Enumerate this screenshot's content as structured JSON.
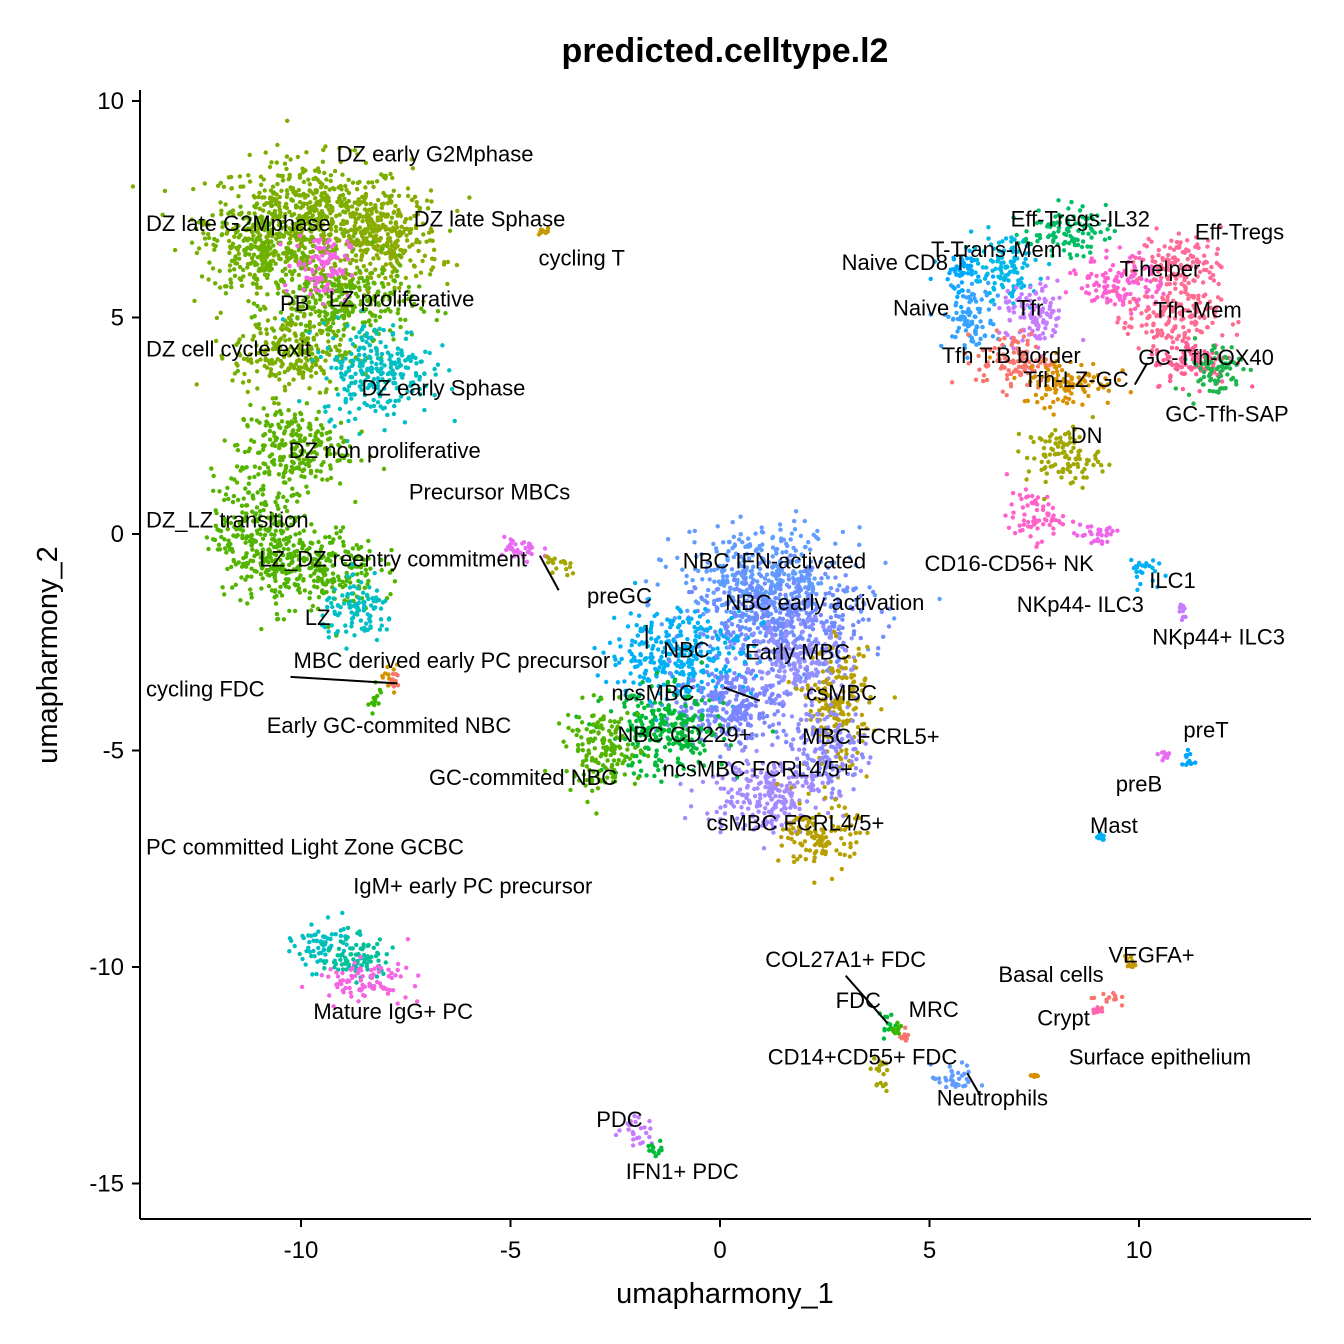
{
  "chart_data": {
    "type": "scatter",
    "title": "predicted.celltype.l2",
    "xlabel": "umapharmony_1",
    "ylabel": "umapharmony_2",
    "xlim": [
      -14,
      14
    ],
    "ylim": [
      -16,
      10.2
    ],
    "xticks": [
      -10,
      -5,
      0,
      5,
      10
    ],
    "yticks": [
      10,
      5,
      0,
      -5,
      -10,
      -15
    ],
    "grid": false,
    "legend": "none",
    "clusters": [
      {
        "name": "DZ early G2Mphase",
        "x": -9.8,
        "y": 7.2,
        "sx": 2.2,
        "sy": 1.3,
        "color": "#7CAE00"
      },
      {
        "name": "DZ late G2Mphase",
        "x": -11.0,
        "y": 6.6,
        "sx": 1.0,
        "sy": 1.0,
        "color": "#6BB100"
      },
      {
        "name": "DZ late Sphase",
        "x": -8.0,
        "y": 6.8,
        "sx": 1.2,
        "sy": 1.0,
        "color": "#8AAB00"
      },
      {
        "name": "LZ proliferative",
        "x": -9.0,
        "y": 5.3,
        "sx": 1.5,
        "sy": 0.9,
        "color": "#5DB300"
      },
      {
        "name": "PB",
        "x": -9.5,
        "y": 6.2,
        "sx": 0.6,
        "sy": 0.7,
        "color": "#F564E3"
      },
      {
        "name": "DZ cell cycle exit",
        "x": -10.3,
        "y": 4.2,
        "sx": 1.2,
        "sy": 0.9,
        "color": "#7CAE00"
      },
      {
        "name": "DZ early Sphase",
        "x": -8.2,
        "y": 3.8,
        "sx": 1.2,
        "sy": 1.0,
        "color": "#00BFC4"
      },
      {
        "name": "DZ non proliferative",
        "x": -10.2,
        "y": 2.0,
        "sx": 1.2,
        "sy": 0.9,
        "color": "#5BB300"
      },
      {
        "name": "DZ_LZ transition",
        "x": -11.0,
        "y": 0.0,
        "sx": 1.0,
        "sy": 1.3,
        "color": "#53B400"
      },
      {
        "name": "LZ_DZ reentry commitment",
        "x": -9.6,
        "y": -0.8,
        "sx": 1.3,
        "sy": 0.9,
        "color": "#4EB400"
      },
      {
        "name": "LZ",
        "x": -8.6,
        "y": -1.8,
        "sx": 0.8,
        "sy": 0.6,
        "color": "#00BFC4"
      },
      {
        "name": "Precursor MBCs",
        "x": -4.8,
        "y": -0.4,
        "sx": 0.5,
        "sy": 0.3,
        "color": "#E76BF3"
      },
      {
        "name": "preGC",
        "x": -3.8,
        "y": -0.7,
        "sx": 0.35,
        "sy": 0.25,
        "color": "#A3A500"
      },
      {
        "name": "cycling T",
        "x": -4.2,
        "y": 7.0,
        "sx": 0.15,
        "sy": 0.1,
        "color": "#C49A00"
      },
      {
        "name": "NBC IFN-activated",
        "x": 1.0,
        "y": -1.0,
        "sx": 1.8,
        "sy": 1.0,
        "color": "#619CFF"
      },
      {
        "name": "NBC early activation",
        "x": 1.5,
        "y": -2.0,
        "sx": 1.8,
        "sy": 1.0,
        "color": "#6F8BFF"
      },
      {
        "name": "NBC",
        "x": -1.0,
        "y": -2.8,
        "sx": 1.5,
        "sy": 1.0,
        "color": "#00B0F6"
      },
      {
        "name": "Early MBC",
        "x": 1.8,
        "y": -3.0,
        "sx": 1.2,
        "sy": 0.9,
        "color": "#9590FF"
      },
      {
        "name": "ncsMBC",
        "x": 0.3,
        "y": -4.0,
        "sx": 1.3,
        "sy": 0.9,
        "color": "#7A86FF"
      },
      {
        "name": "csMBC",
        "x": 2.8,
        "y": -4.0,
        "sx": 0.7,
        "sy": 1.2,
        "color": "#B79F00"
      },
      {
        "name": "NBC CD229+",
        "x": -1.3,
        "y": -4.6,
        "sx": 1.3,
        "sy": 0.9,
        "color": "#00BA38"
      },
      {
        "name": "MBC FCRL5+",
        "x": 2.6,
        "y": -5.0,
        "sx": 0.8,
        "sy": 0.9,
        "color": "#8D8BFF"
      },
      {
        "name": "GC-commited NBC",
        "x": -2.8,
        "y": -5.0,
        "sx": 0.8,
        "sy": 0.9,
        "color": "#53B400"
      },
      {
        "name": "ncsMBC FCRL4/5+",
        "x": 1.0,
        "y": -6.0,
        "sx": 1.3,
        "sy": 0.8,
        "color": "#A58AFF"
      },
      {
        "name": "csMBC FCRL4/5+",
        "x": 2.4,
        "y": -7.0,
        "sx": 0.8,
        "sy": 0.7,
        "color": "#B79F00"
      },
      {
        "name": "MBC derived early PC precursor",
        "x": -7.9,
        "y": -3.2,
        "sx": 0.15,
        "sy": 0.3,
        "color": "#D39200"
      },
      {
        "name": "cycling FDC",
        "x": -7.8,
        "y": -3.4,
        "sx": 0.1,
        "sy": 0.15,
        "color": "#F8766D"
      },
      {
        "name": "Early GC-commited NBC",
        "x": -8.2,
        "y": -3.8,
        "sx": 0.2,
        "sy": 0.3,
        "color": "#39B600"
      },
      {
        "name": "PC committed Light Zone GCBC",
        "x": -9.5,
        "y": -9.5,
        "sx": 0.6,
        "sy": 0.5,
        "color": "#00BFC4"
      },
      {
        "name": "IgM+ early PC precursor",
        "x": -8.7,
        "y": -9.8,
        "sx": 0.8,
        "sy": 0.5,
        "color": "#00C19A"
      },
      {
        "name": "Mature IgG+ PC",
        "x": -8.5,
        "y": -10.3,
        "sx": 1.0,
        "sy": 0.4,
        "color": "#F564E3"
      },
      {
        "name": "Naive CD8 T",
        "x": 5.8,
        "y": 6.0,
        "sx": 0.5,
        "sy": 0.5,
        "color": "#00A9FF"
      },
      {
        "name": "T-Trans-Mem",
        "x": 6.8,
        "y": 6.1,
        "sx": 0.7,
        "sy": 0.7,
        "color": "#00B8E7"
      },
      {
        "name": "Eff-Tregs-IL32",
        "x": 8.2,
        "y": 7.0,
        "sx": 0.9,
        "sy": 0.5,
        "color": "#00BE67"
      },
      {
        "name": "Eff-Tregs",
        "x": 11.0,
        "y": 6.3,
        "sx": 0.9,
        "sy": 0.6,
        "color": "#FF6A98"
      },
      {
        "name": "T-helper",
        "x": 9.6,
        "y": 5.8,
        "sx": 0.9,
        "sy": 0.6,
        "color": "#FD61D1"
      },
      {
        "name": "Naive",
        "x": 6.0,
        "y": 5.0,
        "sx": 0.6,
        "sy": 0.7,
        "color": "#35A2FF"
      },
      {
        "name": "Tfr",
        "x": 7.5,
        "y": 5.0,
        "sx": 0.7,
        "sy": 0.7,
        "color": "#C77CFF"
      },
      {
        "name": "Tfh-Mem",
        "x": 10.8,
        "y": 5.0,
        "sx": 1.0,
        "sy": 0.7,
        "color": "#FF6C91"
      },
      {
        "name": "Tfh T:B border",
        "x": 7.0,
        "y": 4.0,
        "sx": 0.8,
        "sy": 0.6,
        "color": "#F8766D"
      },
      {
        "name": "GC-Tfh-OX40",
        "x": 11.3,
        "y": 4.0,
        "sx": 0.9,
        "sy": 0.5,
        "color": "#FF5E95"
      },
      {
        "name": "Tfh-LZ-GC",
        "x": 8.3,
        "y": 3.5,
        "sx": 1.0,
        "sy": 0.5,
        "color": "#D89000"
      },
      {
        "name": "GC-Tfh-SAP",
        "x": 11.8,
        "y": 3.8,
        "sx": 0.6,
        "sy": 0.6,
        "color": "#1FB44C"
      },
      {
        "name": "DN",
        "x": 8.2,
        "y": 1.8,
        "sx": 0.8,
        "sy": 0.6,
        "color": "#9FA700"
      },
      {
        "name": "CD16-CD56+ NK",
        "x": 7.5,
        "y": 0.4,
        "sx": 0.6,
        "sy": 0.5,
        "color": "#FF61C9"
      },
      {
        "name": "NKp44- ILC3",
        "x": 9.0,
        "y": 0.0,
        "sx": 0.5,
        "sy": 0.3,
        "color": "#F066EA"
      },
      {
        "name": "ILC1",
        "x": 10.0,
        "y": -0.8,
        "sx": 0.35,
        "sy": 0.3,
        "color": "#00B0F6"
      },
      {
        "name": "NKp44+ ILC3",
        "x": 11.0,
        "y": -1.8,
        "sx": 0.15,
        "sy": 0.25,
        "color": "#C77CFF"
      },
      {
        "name": "preT",
        "x": 11.2,
        "y": -5.2,
        "sx": 0.15,
        "sy": 0.25,
        "color": "#00A5FF"
      },
      {
        "name": "preB",
        "x": 10.6,
        "y": -5.1,
        "sx": 0.2,
        "sy": 0.1,
        "color": "#E76BF3"
      },
      {
        "name": "Mast",
        "x": 9.1,
        "y": -7.0,
        "sx": 0.08,
        "sy": 0.08,
        "color": "#00B0F6"
      },
      {
        "name": "COL27A1+ FDC",
        "x": 4.0,
        "y": -11.3,
        "sx": 0.2,
        "sy": 0.3,
        "color": "#00BA38"
      },
      {
        "name": "FDC",
        "x": 4.2,
        "y": -11.5,
        "sx": 0.15,
        "sy": 0.2,
        "color": "#39B600"
      },
      {
        "name": "MRC",
        "x": 4.4,
        "y": -11.6,
        "sx": 0.1,
        "sy": 0.1,
        "color": "#F8766D"
      },
      {
        "name": "CD14+CD55+ FDC",
        "x": 3.8,
        "y": -12.5,
        "sx": 0.2,
        "sy": 0.4,
        "color": "#A3A500"
      },
      {
        "name": "Neutrophils",
        "x": 5.6,
        "y": -12.6,
        "sx": 0.5,
        "sy": 0.3,
        "color": "#619CFF"
      },
      {
        "name": "Basal cells",
        "x": 9.2,
        "y": -10.7,
        "sx": 0.3,
        "sy": 0.2,
        "color": "#F8766D"
      },
      {
        "name": "VEGFA+",
        "x": 9.8,
        "y": -9.9,
        "sx": 0.12,
        "sy": 0.15,
        "color": "#C49A00"
      },
      {
        "name": "Crypt",
        "x": 9.0,
        "y": -11.0,
        "sx": 0.1,
        "sy": 0.1,
        "color": "#FF64B0"
      },
      {
        "name": "Surface epithelium",
        "x": 7.5,
        "y": -12.5,
        "sx": 0.1,
        "sy": 0.05,
        "color": "#D89000"
      },
      {
        "name": "PDC",
        "x": -2.0,
        "y": -13.8,
        "sx": 0.4,
        "sy": 0.3,
        "color": "#C77CFF"
      },
      {
        "name": "IFN1+ PDC",
        "x": -1.5,
        "y": -14.2,
        "sx": 0.2,
        "sy": 0.15,
        "color": "#00BA38"
      }
    ],
    "labels": [
      {
        "text": "DZ early G2Mphase",
        "x": -6.8,
        "y": 8.6,
        "anchor": "middle"
      },
      {
        "text": "DZ late G2Mphase",
        "x": -13.7,
        "y": 7.0,
        "anchor": "start"
      },
      {
        "text": "DZ late Sphase",
        "x": -5.5,
        "y": 7.1,
        "anchor": "middle"
      },
      {
        "text": "cycling T",
        "x": -3.3,
        "y": 6.2,
        "anchor": "middle"
      },
      {
        "text": "PB",
        "x": -10.15,
        "y": 5.15,
        "anchor": "middle"
      },
      {
        "text": "LZ proliferative",
        "x": -7.6,
        "y": 5.25,
        "anchor": "middle"
      },
      {
        "text": "DZ cell cycle exit",
        "x": -13.7,
        "y": 4.1,
        "anchor": "start"
      },
      {
        "text": "DZ early Sphase",
        "x": -6.6,
        "y": 3.2,
        "anchor": "middle"
      },
      {
        "text": "DZ non proliferative",
        "x": -8.0,
        "y": 1.75,
        "anchor": "middle"
      },
      {
        "text": "Precursor MBCs",
        "x": -5.5,
        "y": 0.8,
        "anchor": "middle"
      },
      {
        "text": "DZ_LZ transition",
        "x": -13.7,
        "y": 0.15,
        "anchor": "start"
      },
      {
        "text": "LZ_DZ reentry commitment",
        "x": -7.8,
        "y": -0.75,
        "anchor": "middle"
      },
      {
        "text": "preGC",
        "x": -2.4,
        "y": -1.6,
        "anchor": "middle"
      },
      {
        "text": "LZ",
        "x": -9.6,
        "y": -2.1,
        "anchor": "middle"
      },
      {
        "text": "MBC derived early PC precursor",
        "x": -6.4,
        "y": -3.1,
        "anchor": "middle"
      },
      {
        "text": "cycling FDC",
        "x": -13.7,
        "y": -3.75,
        "anchor": "start"
      },
      {
        "text": "Early GC-commited NBC",
        "x": -7.9,
        "y": -4.6,
        "anchor": "middle"
      },
      {
        "text": "GC-commited NBC",
        "x": -4.7,
        "y": -5.8,
        "anchor": "middle"
      },
      {
        "text": "NBC IFN-activated",
        "x": 1.3,
        "y": -0.8,
        "anchor": "middle"
      },
      {
        "text": "NBC early activation",
        "x": 2.5,
        "y": -1.75,
        "anchor": "middle"
      },
      {
        "text": "NBC",
        "x": -0.8,
        "y": -2.85,
        "anchor": "middle"
      },
      {
        "text": "Early MBC",
        "x": 1.85,
        "y": -2.9,
        "anchor": "middle"
      },
      {
        "text": "ncsMBC",
        "x": -1.6,
        "y": -3.85,
        "anchor": "middle"
      },
      {
        "text": "csMBC",
        "x": 2.9,
        "y": -3.85,
        "anchor": "middle"
      },
      {
        "text": "NBC CD229+",
        "x": -0.85,
        "y": -4.8,
        "anchor": "middle"
      },
      {
        "text": "MBC FCRL5+",
        "x": 3.6,
        "y": -4.85,
        "anchor": "middle"
      },
      {
        "text": "ncsMBC FCRL4/5+",
        "x": 0.9,
        "y": -5.6,
        "anchor": "middle"
      },
      {
        "text": "csMBC FCRL4/5+",
        "x": 1.8,
        "y": -6.85,
        "anchor": "middle"
      },
      {
        "text": "PC committed Light Zone GCBC",
        "x": -13.7,
        "y": -7.4,
        "anchor": "start"
      },
      {
        "text": "IgM+ early PC precursor",
        "x": -5.9,
        "y": -8.3,
        "anchor": "middle"
      },
      {
        "text": "Mature IgG+ PC",
        "x": -7.8,
        "y": -11.2,
        "anchor": "middle"
      },
      {
        "text": "Eff-Tregs-IL32",
        "x": 8.6,
        "y": 7.1,
        "anchor": "middle"
      },
      {
        "text": "Eff-Tregs",
        "x": 12.4,
        "y": 6.8,
        "anchor": "middle"
      },
      {
        "text": "Naive CD8 T",
        "x": 4.4,
        "y": 6.1,
        "anchor": "middle"
      },
      {
        "text": "T-Trans-Mem",
        "x": 6.6,
        "y": 6.4,
        "anchor": "middle"
      },
      {
        "text": "T-helper",
        "x": 10.5,
        "y": 5.95,
        "anchor": "middle"
      },
      {
        "text": "Naive",
        "x": 4.8,
        "y": 5.05,
        "anchor": "middle"
      },
      {
        "text": "Tfr",
        "x": 7.4,
        "y": 5.05,
        "anchor": "middle"
      },
      {
        "text": "Tfh-Mem",
        "x": 11.4,
        "y": 5.0,
        "anchor": "middle"
      },
      {
        "text": "Tfh T:B border",
        "x": 6.95,
        "y": 3.95,
        "anchor": "middle"
      },
      {
        "text": "GC-Tfh-OX40",
        "x": 11.6,
        "y": 3.9,
        "anchor": "middle"
      },
      {
        "text": "Tfh-LZ-GC",
        "x": 8.5,
        "y": 3.4,
        "anchor": "middle"
      },
      {
        "text": "GC-Tfh-SAP",
        "x": 12.1,
        "y": 2.6,
        "anchor": "middle"
      },
      {
        "text": "DN",
        "x": 8.75,
        "y": 2.1,
        "anchor": "middle"
      },
      {
        "text": "CD16-CD56+ NK",
        "x": 6.9,
        "y": -0.85,
        "anchor": "middle"
      },
      {
        "text": "ILC1",
        "x": 10.8,
        "y": -1.25,
        "anchor": "middle"
      },
      {
        "text": "NKp44- ILC3",
        "x": 8.6,
        "y": -1.8,
        "anchor": "middle"
      },
      {
        "text": "NKp44+ ILC3",
        "x": 11.9,
        "y": -2.55,
        "anchor": "middle"
      },
      {
        "text": "preT",
        "x": 11.6,
        "y": -4.7,
        "anchor": "middle"
      },
      {
        "text": "preB",
        "x": 10.0,
        "y": -5.95,
        "anchor": "middle"
      },
      {
        "text": "Mast",
        "x": 9.4,
        "y": -6.9,
        "anchor": "middle"
      },
      {
        "text": "COL27A1+ FDC",
        "x": 3.0,
        "y": -10.0,
        "anchor": "middle"
      },
      {
        "text": "VEGFA+",
        "x": 10.3,
        "y": -9.9,
        "anchor": "middle"
      },
      {
        "text": "Basal cells",
        "x": 7.9,
        "y": -10.35,
        "anchor": "middle"
      },
      {
        "text": "FDC",
        "x": 3.3,
        "y": -10.95,
        "anchor": "middle"
      },
      {
        "text": "MRC",
        "x": 5.1,
        "y": -11.15,
        "anchor": "middle"
      },
      {
        "text": "Crypt",
        "x": 8.2,
        "y": -11.35,
        "anchor": "middle"
      },
      {
        "text": "CD14+CD55+ FDC",
        "x": 3.4,
        "y": -12.25,
        "anchor": "middle"
      },
      {
        "text": "Surface epithelium",
        "x": 10.5,
        "y": -12.25,
        "anchor": "middle"
      },
      {
        "text": "Neutrophils",
        "x": 6.5,
        "y": -13.2,
        "anchor": "middle"
      },
      {
        "text": "PDC",
        "x": -2.4,
        "y": -13.7,
        "anchor": "middle"
      },
      {
        "text": "IFN1+ PDC",
        "x": -0.9,
        "y": -14.9,
        "anchor": "middle"
      }
    ],
    "leaders": [
      {
        "from": [
          -4.3,
          -0.5
        ],
        "to": [
          -3.85,
          -1.3
        ]
      },
      {
        "from": [
          -1.75,
          -2.1
        ],
        "to": [
          -1.75,
          -2.65
        ]
      },
      {
        "from": [
          0.1,
          -3.55
        ],
        "to": [
          0.95,
          -3.85
        ]
      },
      {
        "from": [
          -10.25,
          -3.3
        ],
        "to": [
          -7.7,
          -3.45
        ]
      },
      {
        "from": [
          10.2,
          3.95
        ],
        "to": [
          9.9,
          3.45
        ]
      },
      {
        "from": [
          3.0,
          -10.2
        ],
        "to": [
          4.0,
          -11.3
        ]
      },
      {
        "from": [
          5.9,
          -12.45
        ],
        "to": [
          6.2,
          -12.95
        ]
      }
    ]
  }
}
